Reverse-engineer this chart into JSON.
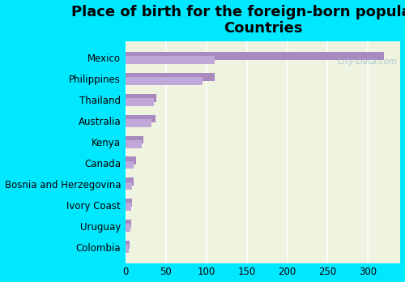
{
  "title": "Place of birth for the foreign-born population -\nCountries",
  "categories": [
    "Mexico",
    "Philippines",
    "Thailand",
    "Australia",
    "Kenya",
    "Canada",
    "Bosnia and Herzegovina",
    "Ivory Coast",
    "Uruguay",
    "Colombia"
  ],
  "values_top": [
    320,
    110,
    38,
    37,
    22,
    13,
    10,
    8,
    7,
    5
  ],
  "values_bot": [
    110,
    95,
    35,
    32,
    20,
    10,
    8,
    7,
    6,
    4
  ],
  "bar_color_top": "#a889c0",
  "bar_color_bot": "#c0a8d8",
  "background_color": "#00e8ff",
  "plot_bg_left": "#eef4e0",
  "plot_bg_right": "#e0eecc",
  "xlim": [
    0,
    340
  ],
  "xticks": [
    0,
    50,
    100,
    150,
    200,
    250,
    300
  ],
  "title_fontsize": 13,
  "label_fontsize": 8.5,
  "tick_fontsize": 8.5,
  "bar_height": 0.38,
  "bar_gap": 0.02
}
